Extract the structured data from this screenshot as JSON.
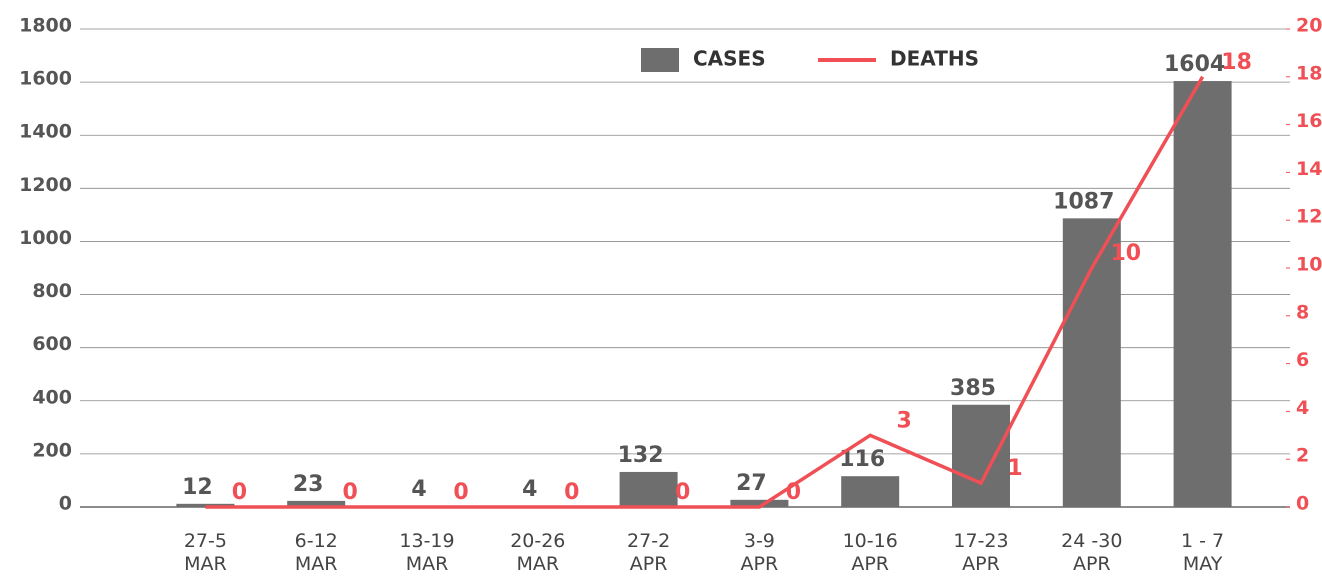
{
  "chart_data": {
    "type": "bar-line",
    "categories": [
      "27-5\nMAR",
      "6-12\nMAR",
      "13-19\nMAR",
      "20-26\nMAR",
      "27-2\nAPR",
      "3-9\nAPR",
      "10-16\nAPR",
      "17-23\nAPR",
      "24 -30\nAPR",
      "1 - 7\nMAY"
    ],
    "series": [
      {
        "name": "CASES",
        "type": "bar",
        "color": "#6e6e6e",
        "values": [
          12,
          23,
          4,
          4,
          132,
          27,
          116,
          385,
          1087,
          1604
        ]
      },
      {
        "name": "DEATHS",
        "type": "line",
        "axis": "y2",
        "color": "#ef4f55",
        "values": [
          0,
          0,
          0,
          0,
          0,
          0,
          3,
          1,
          10,
          18
        ]
      }
    ],
    "ylim": [
      0,
      1800
    ],
    "yticks": [
      0,
      200,
      400,
      600,
      800,
      1000,
      1200,
      1400,
      1600,
      1800
    ],
    "y2lim": [
      0,
      20
    ],
    "y2ticks": [
      0,
      2,
      4,
      6,
      8,
      10,
      12,
      14,
      16,
      18,
      20
    ],
    "grid": true,
    "legend": "top"
  }
}
